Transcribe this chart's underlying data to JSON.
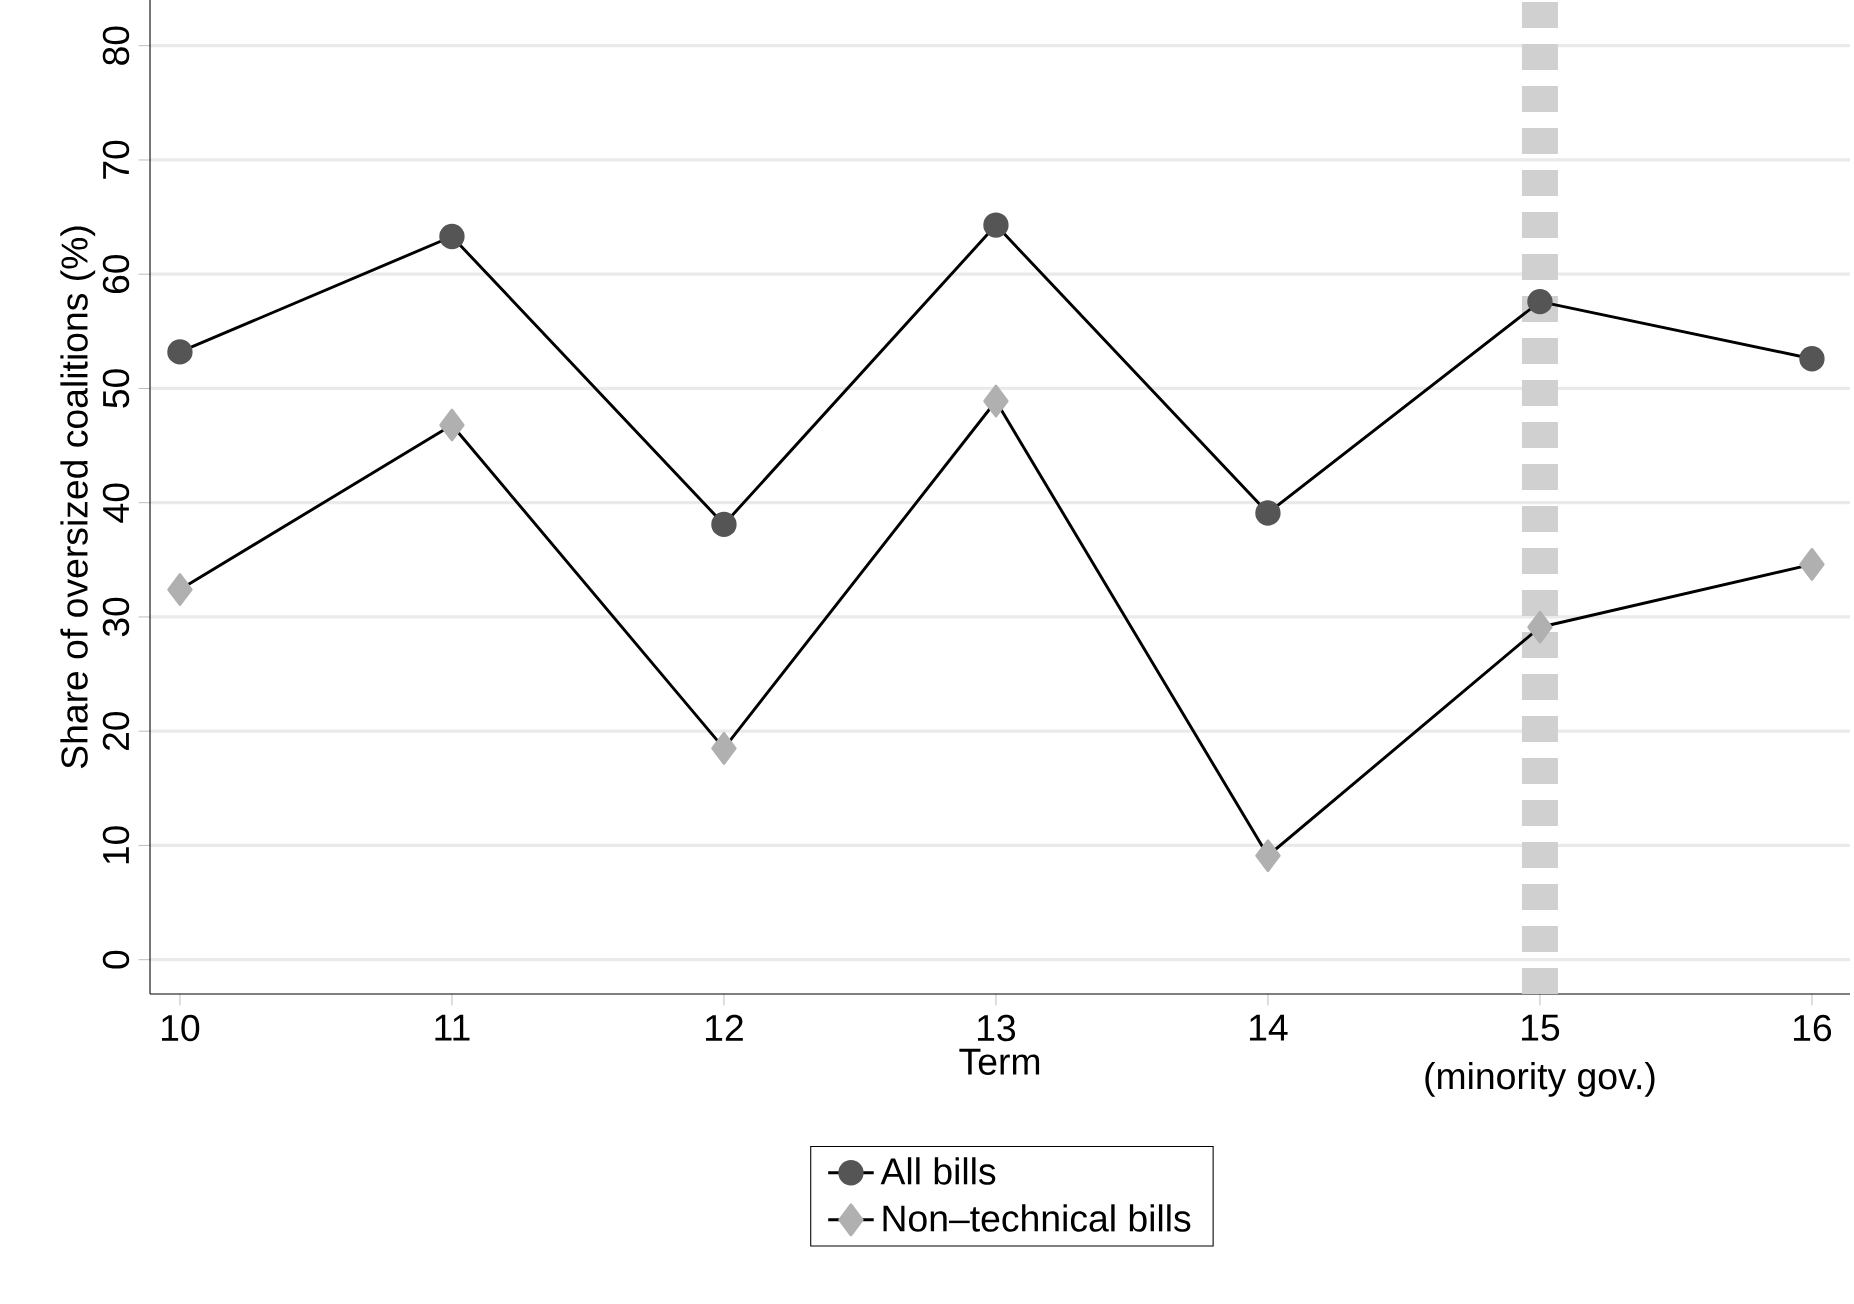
{
  "chart_data": {
    "type": "line",
    "xlabel": "Term",
    "ylabel": "Share of oversized coalitions (%)",
    "x": [
      10,
      11,
      12,
      13,
      14,
      15,
      16
    ],
    "series": [
      {
        "name": "All bills",
        "color": "#555555",
        "marker": "circle",
        "values": [
          53.2,
          63.3,
          38.1,
          64.3,
          39.1,
          57.6,
          52.6
        ]
      },
      {
        "name": "Non–technical bills",
        "color": "#b0b0b0",
        "marker": "diamond",
        "values": [
          32.4,
          46.8,
          18.5,
          48.9,
          9.1,
          29.1,
          34.6
        ]
      }
    ],
    "xlim": [
      9.89,
      16.14
    ],
    "xticks": [
      10,
      11,
      12,
      13,
      14,
      15,
      16
    ],
    "ylim": [
      -3,
      84
    ],
    "yticks": [
      0,
      10,
      20,
      30,
      40,
      50,
      60,
      70,
      80
    ],
    "ref_lines": [
      {
        "axis": "x",
        "value": 15,
        "label": "(minority gov.)",
        "color": "#d0d0d0",
        "line_style": "dashed"
      }
    ],
    "grid": "y",
    "legend": "bottom",
    "line_style": "solid"
  }
}
